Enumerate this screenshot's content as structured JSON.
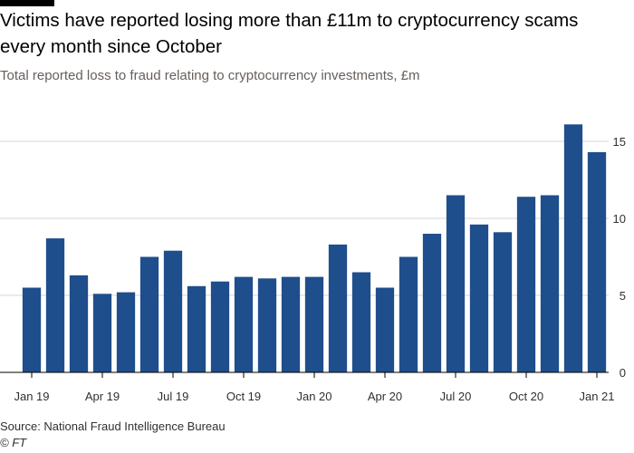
{
  "header": {
    "title": "Victims have reported losing more than £11m to cryptocurrency scams every month since October",
    "subtitle": "Total reported loss to fraud relating to cryptocurrency investments, £m"
  },
  "footer": {
    "source": "Source: National Fraud Intelligence Bureau",
    "credit": "© FT"
  },
  "colors": {
    "bar": "#1f4e8c",
    "grid": "#d9d4cf",
    "axis": "#000000",
    "accent_bar": "#000000"
  },
  "chart_data": {
    "type": "bar",
    "categories": [
      "Jan 19",
      "Feb 19",
      "Mar 19",
      "Apr 19",
      "May 19",
      "Jun 19",
      "Jul 19",
      "Aug 19",
      "Sep 19",
      "Oct 19",
      "Nov 19",
      "Dec 19",
      "Jan 20",
      "Feb 20",
      "Mar 20",
      "Apr 20",
      "May 20",
      "Jun 20",
      "Jul 20",
      "Aug 20",
      "Sep 20",
      "Oct 20",
      "Nov 20",
      "Dec 20",
      "Jan 21"
    ],
    "values": [
      5.5,
      8.7,
      6.3,
      5.1,
      5.2,
      7.5,
      7.9,
      5.6,
      5.9,
      6.2,
      6.1,
      6.2,
      6.2,
      8.3,
      6.5,
      5.5,
      7.5,
      9.0,
      11.5,
      9.6,
      9.1,
      11.4,
      11.5,
      16.1,
      14.3
    ],
    "x_tick_labels": [
      "Jan 19",
      "Apr 19",
      "Jul 19",
      "Oct 19",
      "Jan 20",
      "Apr 20",
      "Jul 20",
      "Oct 20",
      "Jan 21"
    ],
    "x_tick_every": 3,
    "y_ticks": [
      0,
      5,
      10,
      15
    ],
    "ylim": [
      0,
      17
    ],
    "y_axis_side": "right",
    "grid": true,
    "xlabel": "",
    "ylabel": ""
  }
}
